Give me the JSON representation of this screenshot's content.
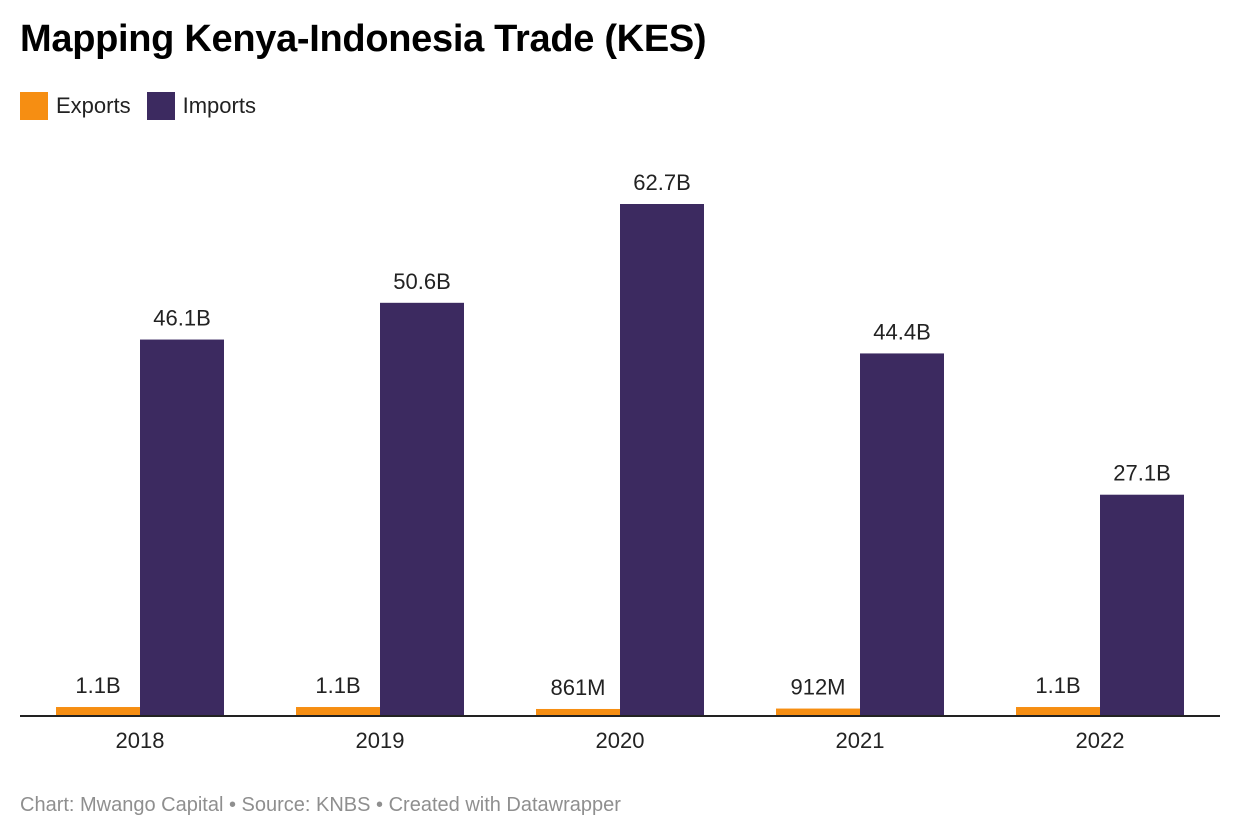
{
  "title": "Mapping Kenya-Indonesia Trade (KES)",
  "legend": {
    "exports_label": "Exports",
    "imports_label": "Imports"
  },
  "colors": {
    "exports": "#f68e12",
    "imports": "#3c2a60",
    "axis": "#222222"
  },
  "footer": {
    "credit": "Chart: Mwango Capital • Source: KNBS • Created with Datawrapper"
  },
  "chart_data": {
    "type": "bar",
    "categories": [
      "2018",
      "2019",
      "2020",
      "2021",
      "2022"
    ],
    "series": [
      {
        "name": "Exports",
        "values": [
          1.1,
          1.1,
          0.861,
          0.912,
          1.1
        ],
        "labels": [
          "1.1B",
          "1.1B",
          "861M",
          "912M",
          "1.1B"
        ]
      },
      {
        "name": "Imports",
        "values": [
          46.1,
          50.6,
          62.7,
          44.4,
          27.1
        ],
        "labels": [
          "46.1B",
          "50.6B",
          "62.7B",
          "44.4B",
          "27.1B"
        ]
      }
    ],
    "ylim": [
      0,
      62.7
    ],
    "grid": false,
    "legend_position": "top-left"
  }
}
